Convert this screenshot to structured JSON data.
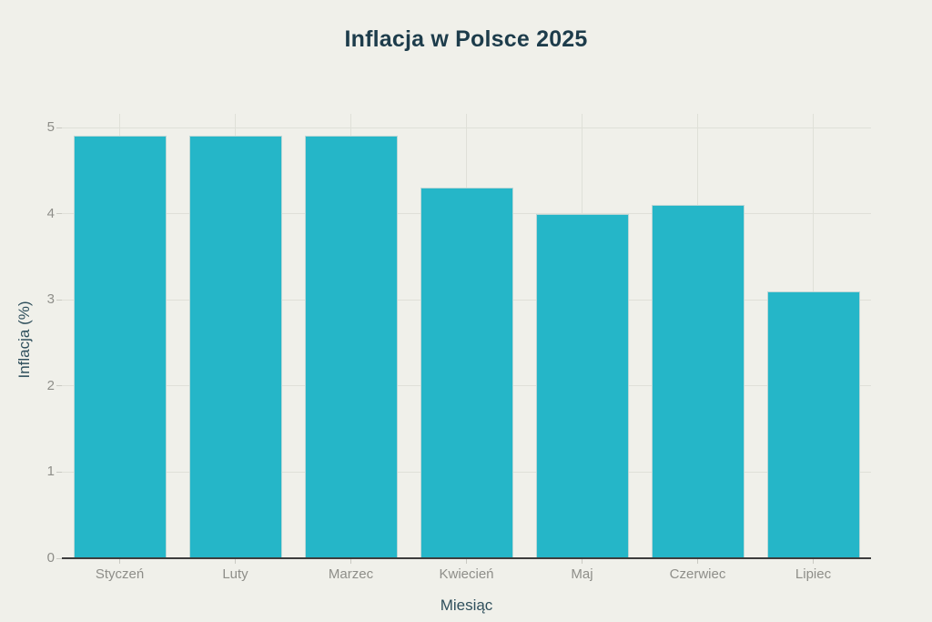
{
  "page": {
    "background": "#f0f0ea"
  },
  "chart_data": {
    "type": "bar",
    "title": "Inflacja w Polsce 2025",
    "xlabel": "Miesiąc",
    "ylabel": "Inflacja (%)",
    "categories": [
      "Styczeń",
      "Luty",
      "Marzec",
      "Kwiecień",
      "Maj",
      "Czerwiec",
      "Lipiec"
    ],
    "values": [
      4.9,
      4.9,
      4.9,
      4.3,
      4.0,
      4.1,
      3.1
    ],
    "ylim": [
      0,
      5
    ],
    "yticks": [
      0,
      1,
      2,
      3,
      4,
      5
    ],
    "grid": true,
    "legend": "none",
    "colors": {
      "background": "#f0f0ea",
      "bar": "#25b6c8",
      "title": "#1d3c4b",
      "axis_title": "#2f4f5c",
      "tick_text": "#8e8e89",
      "grid": "#dfe0d8",
      "tick_mark": "#c9c9c2",
      "axis_line": "#3d3d3d"
    }
  }
}
